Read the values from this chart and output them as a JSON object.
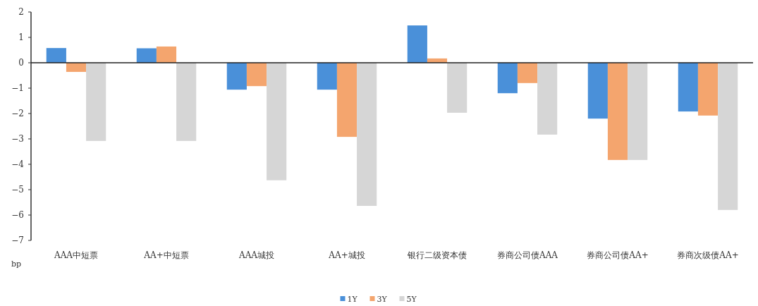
{
  "chart_data": {
    "type": "bar",
    "ylabel": "bp",
    "categories": [
      "AAA中短票",
      "AA+中短票",
      "AAA城投",
      "AA+城投",
      "银行二级资本债",
      "券商公司债AAA",
      "券商公司债AA+",
      "券商次级债AA+"
    ],
    "series": [
      {
        "name": "1Y",
        "color": "#4a90d9",
        "values": [
          0.58,
          0.57,
          -1.06,
          -1.06,
          1.47,
          -1.2,
          -2.2,
          -1.92
        ]
      },
      {
        "name": "3Y",
        "color": "#f4a56e",
        "values": [
          -0.36,
          0.64,
          -0.92,
          -2.92,
          0.17,
          -0.8,
          -3.83,
          -2.08
        ]
      },
      {
        "name": "5Y",
        "color": "#d6d6d6",
        "values": [
          -3.08,
          -3.08,
          -4.63,
          -5.64,
          -1.97,
          -2.83,
          -3.83,
          -5.8
        ]
      }
    ],
    "ylim": [
      -7,
      2
    ],
    "yticks": [
      -7,
      -6,
      -5,
      -4,
      -3,
      -2,
      -1,
      0,
      1,
      2
    ],
    "legend": "bottom"
  }
}
